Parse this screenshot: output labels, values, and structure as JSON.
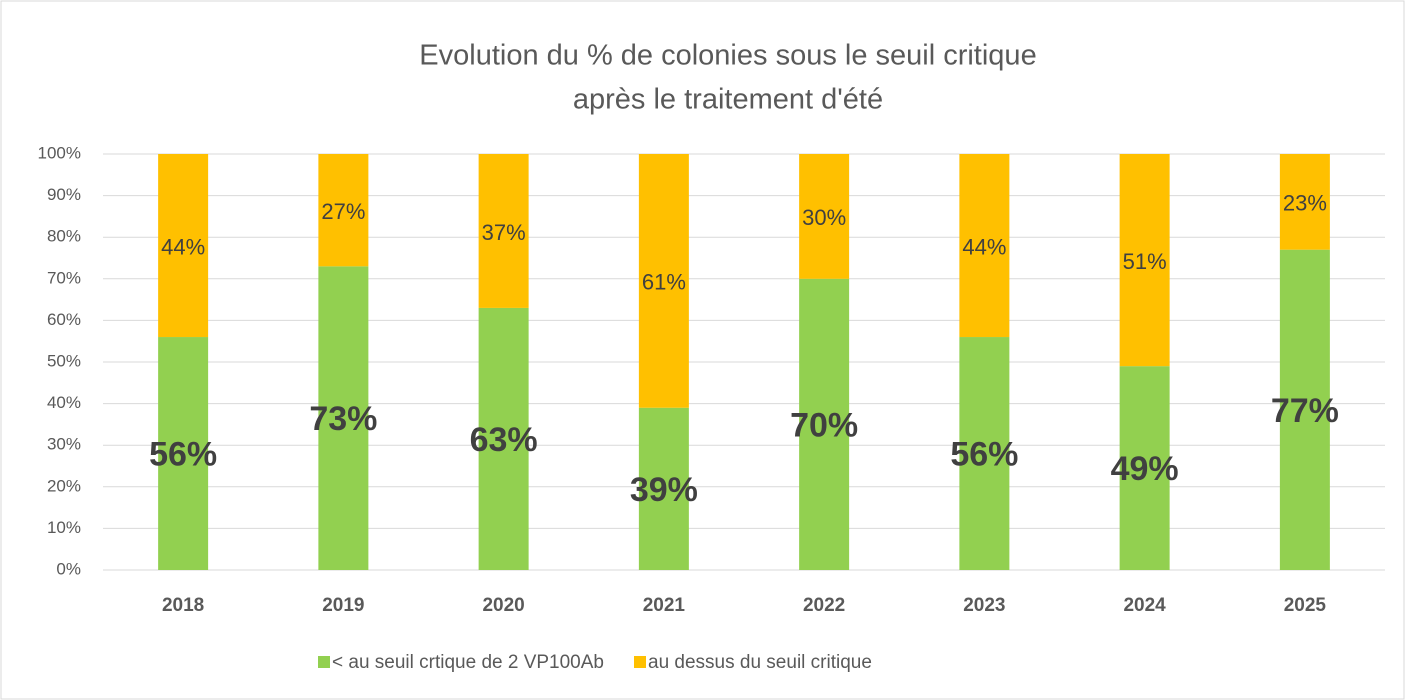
{
  "chart_data": {
    "type": "stacked_bar",
    "title": [
      "Evolution du % de colonies sous le seuil critique",
      "après le traitement d'été"
    ],
    "categories": [
      "2018",
      "2019",
      "2020",
      "2021",
      "2022",
      "2023",
      "2024",
      "2025"
    ],
    "series": [
      {
        "name": "< au seuil crtique de 2 VP100Ab",
        "color": "#92d050",
        "values": [
          56,
          73,
          63,
          39,
          70,
          56,
          49,
          77
        ],
        "value_labels": [
          "56%",
          "73%",
          "63%",
          "39%",
          "70%",
          "56%",
          "49%",
          "77%"
        ]
      },
      {
        "name": "au dessus du seuil critique",
        "color": "#ffc000",
        "values": [
          44,
          27,
          37,
          61,
          30,
          44,
          51,
          23
        ],
        "value_labels": [
          "44%",
          "27%",
          "37%",
          "61%",
          "30%",
          "44%",
          "51%",
          "23%"
        ]
      }
    ],
    "ylim": [
      0,
      100
    ],
    "yticks": [
      {
        "value": 0,
        "label": "0%"
      },
      {
        "value": 10,
        "label": "10%"
      },
      {
        "value": 20,
        "label": "20%"
      },
      {
        "value": 30,
        "label": "30%"
      },
      {
        "value": 40,
        "label": "40%"
      },
      {
        "value": 50,
        "label": "50%"
      },
      {
        "value": 60,
        "label": "60%"
      },
      {
        "value": 70,
        "label": "70%"
      },
      {
        "value": 80,
        "label": "80%"
      },
      {
        "value": 90,
        "label": "90%"
      },
      {
        "value": 100,
        "label": "100%"
      }
    ],
    "grid": true,
    "legend": "bottom"
  }
}
